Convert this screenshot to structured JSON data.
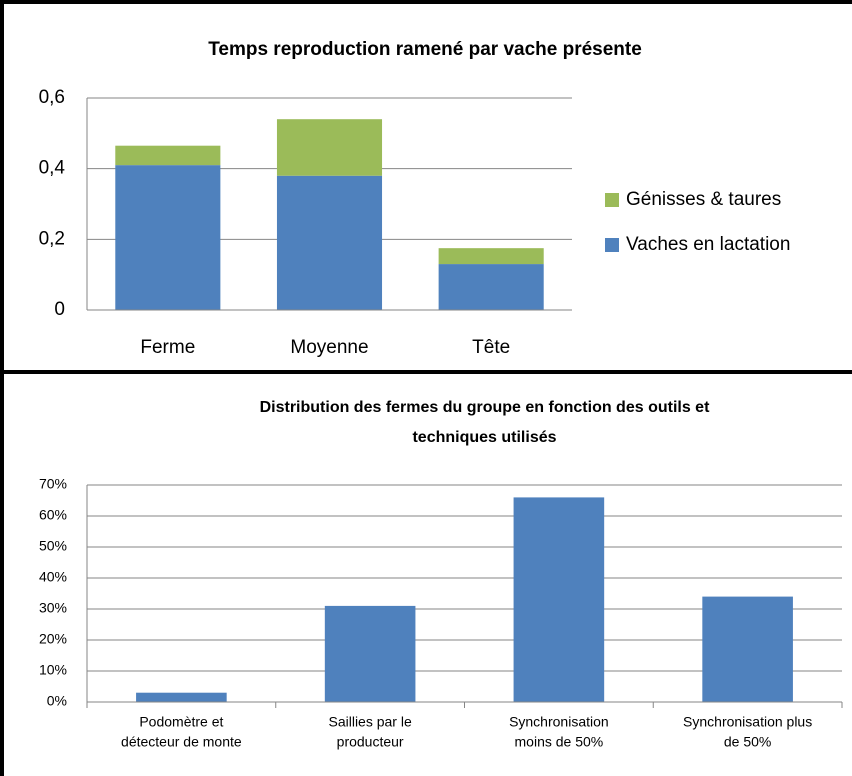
{
  "chart_data": [
    {
      "type": "stacked_bar",
      "title": "Temps reproduction ramené par vache présente",
      "categories": [
        "Ferme",
        "Moyenne",
        "Tête"
      ],
      "series": [
        {
          "name": "Vaches en lactation",
          "color": "#4f81bd",
          "values": [
            0.41,
            0.38,
            0.13
          ]
        },
        {
          "name": "Génisses & taures",
          "color": "#9bbb59",
          "values": [
            0.055,
            0.16,
            0.045
          ]
        }
      ],
      "ylim": [
        0,
        0.6
      ],
      "yticks": [
        0,
        {
          "value": 0.2,
          "label": "0,2"
        },
        {
          "value": 0.4,
          "label": "0,4"
        },
        {
          "value": 0.6,
          "label": "0,6"
        }
      ],
      "grid": true,
      "legend": "right"
    },
    {
      "type": "bar",
      "title": [
        "Distribution des fermes du groupe en fonction des outils  et",
        "techniques utilisés"
      ],
      "categories": [
        [
          "Podomètre et",
          "détecteur de monte"
        ],
        [
          "Saillies par le",
          "producteur"
        ],
        [
          "Synchronisation",
          "moins de 50%"
        ],
        [
          "Synchronisation plus",
          "de 50%"
        ]
      ],
      "values": [
        3,
        31,
        66,
        34
      ],
      "color": "#4f81bd",
      "ylim": [
        0,
        70
      ],
      "yticks": [
        {
          "value": 0,
          "label": "0%"
        },
        {
          "value": 10,
          "label": "10%"
        },
        {
          "value": 20,
          "label": "20%"
        },
        {
          "value": 30,
          "label": "30%"
        },
        {
          "value": 40,
          "label": "40%"
        },
        {
          "value": 50,
          "label": "50%"
        },
        {
          "value": 60,
          "label": "60%"
        },
        {
          "value": 70,
          "label": "70%"
        }
      ],
      "grid": true
    }
  ]
}
